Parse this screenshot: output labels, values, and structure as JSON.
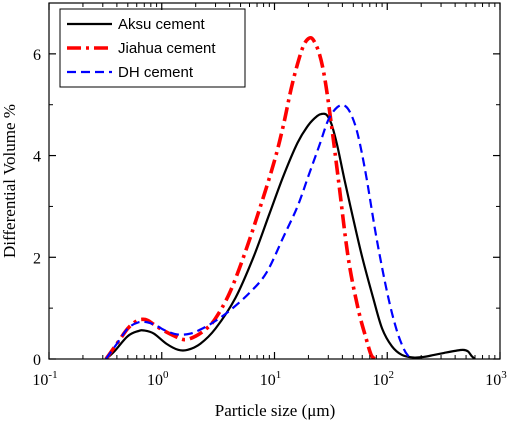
{
  "chart_data": {
    "type": "line",
    "xlabel": "Particle size  (μm)",
    "ylabel": "Differential Volume %",
    "xscale": "log",
    "xlim": [
      0.1,
      1000
    ],
    "ylim": [
      0,
      7
    ],
    "x_ticks": [
      0.1,
      1,
      10,
      100,
      1000
    ],
    "x_tick_labels": [
      {
        "base": "10",
        "exp": "-1"
      },
      {
        "base": "10",
        "exp": "0"
      },
      {
        "base": "10",
        "exp": "1"
      },
      {
        "base": "10",
        "exp": "2"
      },
      {
        "base": "10",
        "exp": "3"
      }
    ],
    "y_ticks": [
      0,
      2,
      4,
      6
    ],
    "y_tick_labels": [
      "0",
      "2",
      "4",
      "6"
    ],
    "grid": false,
    "legend_position": "top-left",
    "series": [
      {
        "name": "Aksu cement",
        "color": "#000000",
        "style": "solid",
        "x": [
          0.32,
          0.38,
          0.5,
          0.62,
          0.7,
          0.85,
          1.1,
          1.4,
          1.7,
          2.2,
          3.0,
          4.5,
          6.5,
          9.0,
          12,
          16,
          20,
          24,
          26.5,
          29,
          32,
          36,
          42,
          50,
          60,
          75,
          90,
          110,
          135,
          170,
          210,
          260,
          320,
          400,
          470,
          520,
          560,
          600
        ],
        "y": [
          0,
          0.15,
          0.45,
          0.55,
          0.56,
          0.5,
          0.3,
          0.18,
          0.18,
          0.3,
          0.6,
          1.2,
          2.0,
          2.85,
          3.6,
          4.25,
          4.6,
          4.78,
          4.82,
          4.8,
          4.62,
          4.2,
          3.5,
          2.75,
          2.0,
          1.2,
          0.6,
          0.25,
          0.08,
          0.03,
          0.04,
          0.08,
          0.12,
          0.16,
          0.18,
          0.15,
          0.06,
          0
        ]
      },
      {
        "name": "Jiahua cement",
        "color": "#ff0000",
        "style": "dashdot",
        "x": [
          0.32,
          0.4,
          0.5,
          0.6,
          0.68,
          0.75,
          0.85,
          1.0,
          1.3,
          1.6,
          2.0,
          2.5,
          3.0,
          4.0,
          5.5,
          7.5,
          10,
          12,
          14,
          16,
          18,
          20,
          22,
          25,
          28,
          32,
          37,
          45,
          55,
          65,
          72,
          78
        ],
        "y": [
          0,
          0.3,
          0.6,
          0.75,
          0.78,
          0.76,
          0.68,
          0.58,
          0.45,
          0.38,
          0.45,
          0.6,
          0.8,
          1.3,
          2.1,
          3.0,
          3.9,
          4.6,
          5.3,
          5.8,
          6.15,
          6.3,
          6.28,
          6.0,
          5.5,
          4.6,
          3.5,
          2.0,
          1.0,
          0.4,
          0.08,
          0
        ]
      },
      {
        "name": "DH cement",
        "color": "#0000ff",
        "style": "dashed",
        "x": [
          0.32,
          0.4,
          0.5,
          0.62,
          0.75,
          0.9,
          1.1,
          1.4,
          1.8,
          2.3,
          3.0,
          4.0,
          6.0,
          8.5,
          12,
          16,
          20,
          25,
          30,
          36,
          42,
          48,
          55,
          65,
          80,
          100,
          120,
          140,
          155,
          165
        ],
        "y": [
          0,
          0.3,
          0.6,
          0.72,
          0.72,
          0.65,
          0.55,
          0.48,
          0.5,
          0.6,
          0.75,
          0.95,
          1.3,
          1.7,
          2.4,
          3.0,
          3.6,
          4.2,
          4.7,
          4.95,
          4.98,
          4.8,
          4.4,
          3.6,
          2.4,
          1.3,
          0.6,
          0.2,
          0.05,
          0
        ]
      }
    ]
  }
}
